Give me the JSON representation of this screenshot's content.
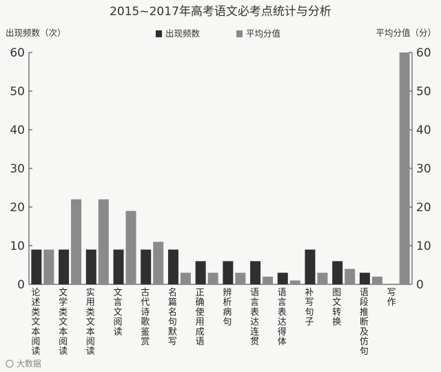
{
  "chart_data": {
    "type": "bar",
    "title": "2015~2017年高考语文必考点统计与分析",
    "ylabel_left": "出现频数（次）",
    "ylabel_right": "平均分值（分）",
    "ylim": [
      0,
      60
    ],
    "yticks": [
      0,
      10,
      20,
      30,
      40,
      50,
      60
    ],
    "grid": false,
    "legend_position": "top-center",
    "categories": [
      "论述类文本阅读",
      "文学类文本阅读",
      "实用类文本阅读",
      "文言文阅读",
      "古代诗歌鉴赏",
      "名篇名句默写",
      "正确使用成语",
      "辨析病句",
      "语言表达连贯",
      "语言表达得体",
      "补写句子",
      "图文转换",
      "语段推断及仿句",
      "写作"
    ],
    "series": [
      {
        "name": "出现频数",
        "color": "#2f2f2f",
        "values": [
          9,
          9,
          9,
          9,
          9,
          9,
          6,
          6,
          6,
          3,
          9,
          6,
          3,
          0
        ]
      },
      {
        "name": "平均分值",
        "color": "#8a8a8a",
        "values": [
          9,
          22,
          22,
          19,
          11,
          3,
          3,
          3,
          2,
          1,
          3,
          4,
          2,
          60
        ]
      }
    ]
  },
  "watermark": {
    "left_text": "大数据",
    "icon": "weibo-icon"
  }
}
